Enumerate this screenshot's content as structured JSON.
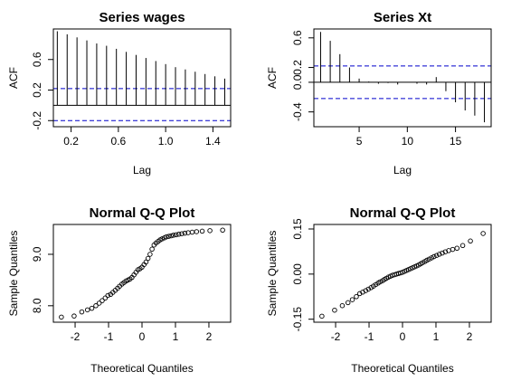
{
  "chart_data": [
    {
      "type": "bar",
      "subtype": "acf",
      "title": "Series wages",
      "xlabel": "Lag",
      "ylabel": "ACF",
      "xlim": [
        0.05,
        1.55
      ],
      "ylim": [
        -0.28,
        1.0
      ],
      "xticks": [
        0.2,
        0.6,
        1.0,
        1.4
      ],
      "xtick_labels": [
        "0.2",
        "0.6",
        "1.0",
        "1.4"
      ],
      "yticks": [
        -0.2,
        0.2,
        0.6
      ],
      "ytick_labels": [
        "-0.2",
        "0.2",
        "0.6"
      ],
      "x": [
        0.0833,
        0.1667,
        0.25,
        0.3333,
        0.4167,
        0.5,
        0.5833,
        0.6667,
        0.75,
        0.8333,
        0.9167,
        1.0,
        1.0833,
        1.1667,
        1.25,
        1.3333,
        1.4167,
        1.5
      ],
      "values": [
        0.97,
        0.93,
        0.89,
        0.85,
        0.81,
        0.78,
        0.74,
        0.7,
        0.66,
        0.62,
        0.58,
        0.54,
        0.5,
        0.47,
        0.44,
        0.41,
        0.38,
        0.35
      ],
      "confidence_bounds": [
        -0.2,
        0.22
      ],
      "zero_line": 0
    },
    {
      "type": "bar",
      "subtype": "acf",
      "title": "Series Xt",
      "xlabel": "Lag",
      "ylabel": "ACF",
      "xlim": [
        0.3,
        18.7
      ],
      "ylim": [
        -0.6,
        0.72
      ],
      "xticks": [
        5,
        10,
        15
      ],
      "xtick_labels": [
        "5",
        "10",
        "15"
      ],
      "yticks": [
        -0.4,
        0.0,
        0.2,
        0.6
      ],
      "ytick_labels": [
        "-0.4",
        "0.0",
        "0.2",
        "0.6"
      ],
      "x": [
        1,
        2,
        3,
        4,
        5,
        6,
        7,
        8,
        9,
        10,
        11,
        12,
        13,
        14,
        15,
        16,
        17,
        18
      ],
      "values": [
        0.68,
        0.56,
        0.38,
        0.2,
        0.05,
        0.01,
        -0.02,
        -0.01,
        -0.03,
        0.0,
        -0.02,
        -0.03,
        0.07,
        -0.12,
        -0.27,
        -0.38,
        -0.45,
        -0.54
      ],
      "confidence_bounds": [
        -0.22,
        0.22
      ],
      "zero_line": 0
    },
    {
      "type": "scatter",
      "subtype": "qqnorm",
      "title": "Normal Q-Q Plot",
      "xlabel": "Theoretical Quantiles",
      "ylabel": "Sample Quantiles",
      "xlim": [
        -2.65,
        2.65
      ],
      "ylim": [
        7.68,
        9.58
      ],
      "xticks": [
        -2,
        -1,
        0,
        1,
        2
      ],
      "xtick_labels": [
        "-2",
        "-1",
        "0",
        "1",
        "2"
      ],
      "yticks": [
        8.0,
        9.0
      ],
      "ytick_labels": [
        "8.0",
        "9.0"
      ],
      "x": [
        -2.41,
        -2.03,
        -1.8,
        -1.63,
        -1.5,
        -1.38,
        -1.28,
        -1.19,
        -1.1,
        -1.02,
        -0.94,
        -0.87,
        -0.8,
        -0.73,
        -0.67,
        -0.6,
        -0.54,
        -0.48,
        -0.42,
        -0.36,
        -0.3,
        -0.24,
        -0.18,
        -0.12,
        -0.06,
        0.0,
        0.06,
        0.12,
        0.18,
        0.24,
        0.3,
        0.36,
        0.42,
        0.48,
        0.54,
        0.6,
        0.67,
        0.73,
        0.8,
        0.87,
        0.94,
        1.02,
        1.1,
        1.19,
        1.28,
        1.38,
        1.5,
        1.63,
        1.8,
        2.03,
        2.41
      ],
      "y": [
        7.78,
        7.8,
        7.88,
        7.92,
        7.95,
        8.0,
        8.05,
        8.1,
        8.15,
        8.2,
        8.22,
        8.26,
        8.3,
        8.34,
        8.38,
        8.42,
        8.45,
        8.48,
        8.5,
        8.52,
        8.55,
        8.6,
        8.65,
        8.7,
        8.72,
        8.75,
        8.8,
        8.85,
        8.92,
        9.0,
        9.1,
        9.18,
        9.22,
        9.25,
        9.28,
        9.3,
        9.32,
        9.34,
        9.35,
        9.36,
        9.37,
        9.38,
        9.39,
        9.4,
        9.41,
        9.42,
        9.43,
        9.44,
        9.45,
        9.46,
        9.47
      ]
    },
    {
      "type": "scatter",
      "subtype": "qqnorm",
      "title": "Normal Q-Q Plot",
      "xlabel": "Theoretical Quantiles",
      "ylabel": "Sample Quantiles",
      "xlim": [
        -2.65,
        2.65
      ],
      "ylim": [
        -0.16,
        0.165
      ],
      "xticks": [
        -2,
        -1,
        0,
        1,
        2
      ],
      "xtick_labels": [
        "-2",
        "-1",
        "0",
        "1",
        "2"
      ],
      "yticks": [
        -0.15,
        0.0,
        0.15
      ],
      "ytick_labels": [
        "-0.15",
        "0.00",
        "0.15"
      ],
      "x": [
        -2.41,
        -2.03,
        -1.8,
        -1.63,
        -1.5,
        -1.38,
        -1.28,
        -1.19,
        -1.1,
        -1.02,
        -0.94,
        -0.87,
        -0.8,
        -0.73,
        -0.67,
        -0.6,
        -0.54,
        -0.48,
        -0.42,
        -0.36,
        -0.3,
        -0.24,
        -0.18,
        -0.12,
        -0.06,
        0.0,
        0.06,
        0.12,
        0.18,
        0.24,
        0.3,
        0.36,
        0.42,
        0.48,
        0.54,
        0.6,
        0.67,
        0.73,
        0.8,
        0.87,
        0.94,
        1.02,
        1.1,
        1.19,
        1.28,
        1.38,
        1.5,
        1.63,
        1.8,
        2.03,
        2.41
      ],
      "y": [
        -0.14,
        -0.12,
        -0.105,
        -0.095,
        -0.085,
        -0.075,
        -0.065,
        -0.06,
        -0.055,
        -0.05,
        -0.045,
        -0.04,
        -0.035,
        -0.03,
        -0.026,
        -0.022,
        -0.018,
        -0.014,
        -0.01,
        -0.007,
        -0.004,
        -0.002,
        0.0,
        0.002,
        0.004,
        0.006,
        0.009,
        0.012,
        0.015,
        0.018,
        0.021,
        0.024,
        0.027,
        0.03,
        0.034,
        0.038,
        0.042,
        0.046,
        0.05,
        0.054,
        0.058,
        0.062,
        0.066,
        0.07,
        0.074,
        0.078,
        0.082,
        0.086,
        0.095,
        0.11,
        0.135
      ]
    }
  ],
  "colors": {
    "bars": "#000000",
    "confidence": "#0000cc",
    "frame": "#000000",
    "points": "#000000"
  }
}
